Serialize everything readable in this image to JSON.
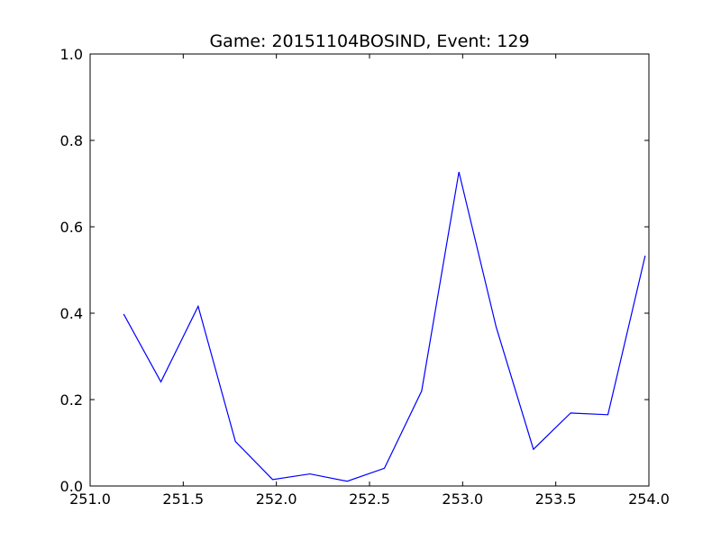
{
  "chart_data": {
    "type": "line",
    "title": "Game: 20151104BOSIND, Event: 129",
    "xlabel": "",
    "ylabel": "",
    "xlim": [
      251.0,
      254.0
    ],
    "ylim": [
      0.0,
      1.0
    ],
    "x_ticks": [
      251.0,
      251.5,
      252.0,
      252.5,
      253.0,
      253.5,
      254.0
    ],
    "x_tick_labels": [
      "251.0",
      "251.5",
      "252.0",
      "252.5",
      "253.0",
      "253.5",
      "254.0"
    ],
    "y_ticks": [
      0.0,
      0.2,
      0.4,
      0.6,
      0.8,
      1.0
    ],
    "y_tick_labels": [
      "0.0",
      "0.2",
      "0.4",
      "0.6",
      "0.8",
      "1.0"
    ],
    "grid": false,
    "series": [
      {
        "color": "#0000ff",
        "x": [
          251.18,
          251.38,
          251.58,
          251.78,
          251.98,
          252.18,
          252.38,
          252.58,
          252.78,
          252.98,
          253.18,
          253.38,
          253.58,
          253.78,
          253.98
        ],
        "y": [
          0.398,
          0.241,
          0.416,
          0.103,
          0.015,
          0.028,
          0.011,
          0.041,
          0.22,
          0.727,
          0.368,
          0.085,
          0.169,
          0.165,
          0.533
        ]
      }
    ]
  }
}
